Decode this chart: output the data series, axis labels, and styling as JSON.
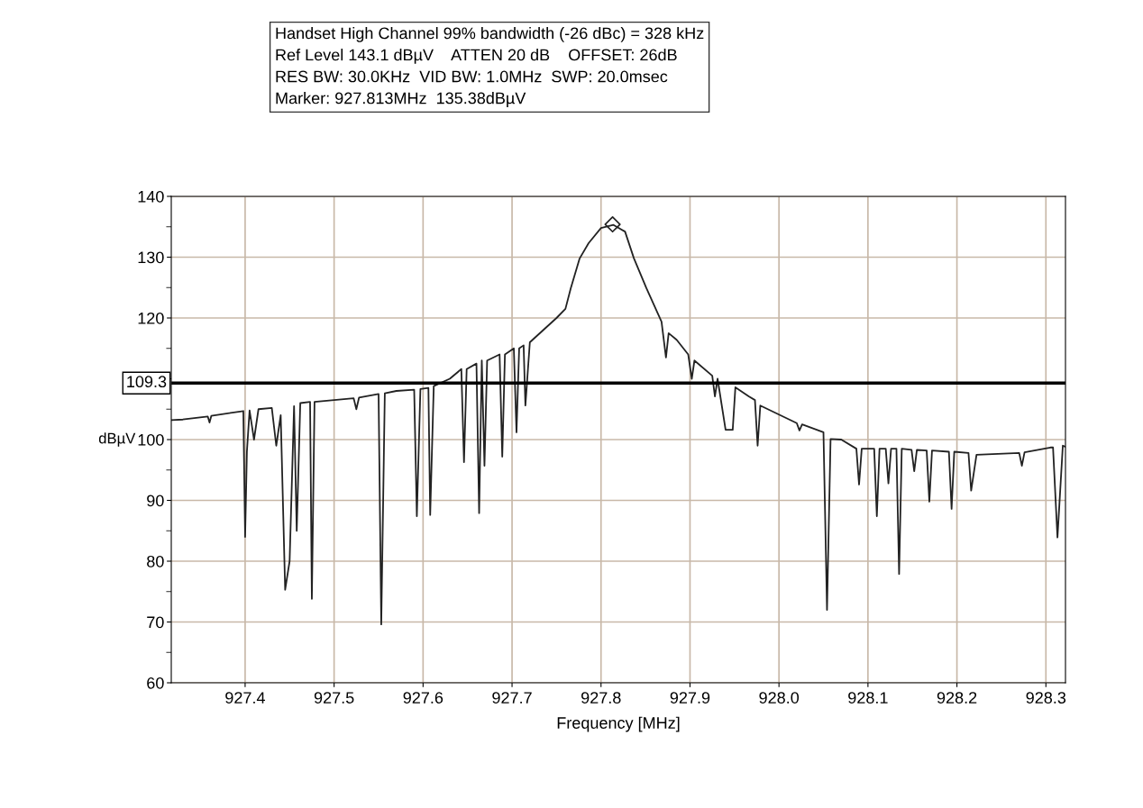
{
  "chart_data": {
    "type": "line",
    "title": "Handset High Channel 99% bandwidth (-26 dBc) = 328 kHz",
    "annotations": [
      "Ref Level 143.1 dBµV    ATTEN 20 dB    OFFSET: 26dB",
      "RES BW: 30.0KHz  VID BW: 1.0MHz  SWP: 20.0msec",
      "Marker: 927.813MHz  135.38dBµV"
    ],
    "xlabel": "Frequency [MHz]",
    "ylabel": "dBµV",
    "series": [
      {
        "color": "#222222",
        "x": [
          927.317,
          927.33,
          927.358,
          927.36,
          927.362,
          927.398,
          927.4,
          927.402,
          927.405,
          927.41,
          927.415,
          927.43,
          927.435,
          927.44,
          927.445,
          927.45,
          927.455,
          927.458,
          927.462,
          927.473,
          927.475,
          927.478,
          927.5,
          927.522,
          927.525,
          927.528,
          927.55,
          927.553,
          927.557,
          927.57,
          927.59,
          927.593,
          927.597,
          927.606,
          927.608,
          927.612,
          927.63,
          927.643,
          927.646,
          927.649,
          927.66,
          927.663,
          927.666,
          927.669,
          927.672,
          927.686,
          927.689,
          927.692,
          927.702,
          927.705,
          927.708,
          927.713,
          927.715,
          927.72,
          927.75,
          927.76,
          927.766,
          927.776,
          927.786,
          927.8,
          927.814,
          927.827,
          927.837,
          927.851,
          927.868,
          927.873,
          927.876,
          927.885,
          927.898,
          927.902,
          927.905,
          927.925,
          927.928,
          927.931,
          927.94,
          927.948,
          927.951,
          927.966,
          927.973,
          927.976,
          927.979,
          928.02,
          928.023,
          928.026,
          928.05,
          928.054,
          928.058,
          928.07,
          928.087,
          928.09,
          928.093,
          928.107,
          928.11,
          928.113,
          928.12,
          928.123,
          928.126,
          928.132,
          928.135,
          928.138,
          928.149,
          928.152,
          928.155,
          928.166,
          928.169,
          928.172,
          928.191,
          928.194,
          928.197,
          928.213,
          928.216,
          928.222,
          928.27,
          928.273,
          928.276,
          928.305,
          928.308,
          928.313,
          928.319,
          928.322
        ],
        "values": [
          103.2,
          103.3,
          103.8,
          102.8,
          103.9,
          104.7,
          84,
          98,
          104.8,
          100,
          105,
          105.2,
          99,
          104,
          75.3,
          80,
          105.5,
          85,
          106,
          106.2,
          73.8,
          106.2,
          106.5,
          106.8,
          105,
          106.9,
          107.5,
          69.6,
          107.6,
          108,
          108.2,
          87.4,
          108.3,
          108.5,
          87.6,
          108.8,
          110,
          111.6,
          96.3,
          111.6,
          112.5,
          87.9,
          113,
          95.7,
          113,
          114,
          97.2,
          114,
          115,
          101.2,
          115,
          115.5,
          105.6,
          116,
          120,
          121.5,
          124.9,
          129.8,
          132.3,
          134.8,
          135.3,
          134.2,
          129.8,
          124.9,
          119.4,
          113.5,
          117.5,
          116.4,
          114,
          110,
          113,
          110.5,
          107.1,
          110,
          101.6,
          101.6,
          108.6,
          107.1,
          106.5,
          99,
          105.6,
          102.7,
          101.5,
          102.5,
          101.2,
          72,
          100.1,
          100,
          98.5,
          92.6,
          98.5,
          98.5,
          87.4,
          98.5,
          98.5,
          92.8,
          98.5,
          98.5,
          77.9,
          98.5,
          98.3,
          94.8,
          98.3,
          98.2,
          89.8,
          98.2,
          98,
          88.6,
          98,
          97.8,
          91.6,
          97.5,
          97.8,
          95.7,
          97.9,
          98.7,
          98.7,
          83.9,
          99,
          98.8
        ]
      },
      {
        "type": "scatter",
        "color": "#222222",
        "marker": "diamond",
        "x": [
          927.813
        ],
        "values": [
          135.4
        ]
      }
    ],
    "xlim": [
      927.317,
      928.322
    ],
    "ylim": [
      60,
      140
    ],
    "xticks": [
      927.4,
      927.5,
      927.6,
      927.7,
      927.8,
      927.9,
      {
        "value": 928.0,
        "label": "928.0"
      },
      928.1,
      928.2,
      928.3
    ],
    "yticks": [
      60,
      {
        "value": 65,
        "label": null
      },
      70,
      {
        "value": 75,
        "label": null
      },
      80,
      {
        "value": 85,
        "label": null
      },
      90,
      {
        "value": 95,
        "label": null
      },
      100,
      {
        "value": 105,
        "label": null
      },
      {
        "value": 110,
        "label": null
      },
      {
        "value": 115,
        "label": null
      },
      120,
      {
        "value": 125,
        "label": null
      },
      130,
      {
        "value": 135,
        "label": null
      },
      140
    ],
    "ref_lines": [
      {
        "axis": "y",
        "value": 109.3,
        "label": "109.3",
        "color": "#000000"
      }
    ],
    "grid": true
  }
}
